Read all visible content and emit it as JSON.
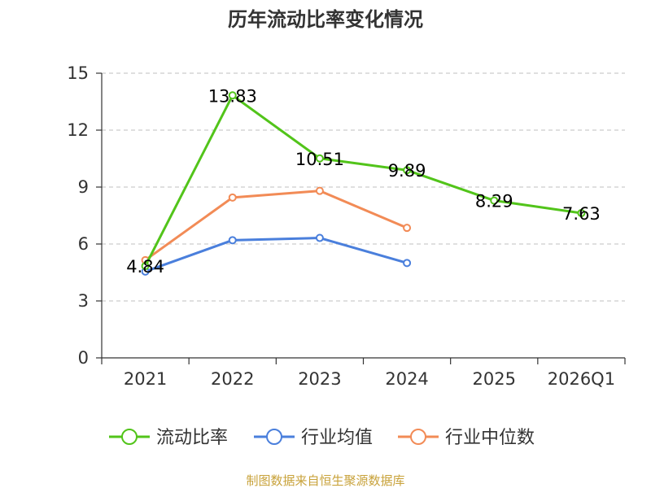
{
  "chart_data": {
    "type": "line",
    "title": "历年流动比率变化情况",
    "categories": [
      "2021",
      "2022",
      "2023",
      "2024",
      "2025",
      "2026Q1"
    ],
    "ylim": [
      0,
      15
    ],
    "yticks": [
      "0",
      "3",
      "6",
      "9",
      "12",
      "15"
    ],
    "grid": "horizontal-dashed",
    "legend_position": "bottom",
    "series": [
      {
        "name": "流动比率",
        "color": "#52c41a",
        "values": [
          4.84,
          13.83,
          10.51,
          9.89,
          8.29,
          7.63
        ],
        "labels": [
          "4.84",
          "13.83",
          "10.51",
          "9.89",
          "8.29",
          "7.63"
        ]
      },
      {
        "name": "行业均值",
        "color": "#4a7fdc",
        "values": [
          4.55,
          6.2,
          6.32,
          5.0,
          null,
          null
        ]
      },
      {
        "name": "行业中位数",
        "color": "#f28b56",
        "values": [
          5.15,
          8.45,
          8.8,
          6.85,
          null,
          null
        ]
      }
    ],
    "source": "制图数据来自恒生聚源数据库",
    "source_color": "#c8a23a"
  }
}
